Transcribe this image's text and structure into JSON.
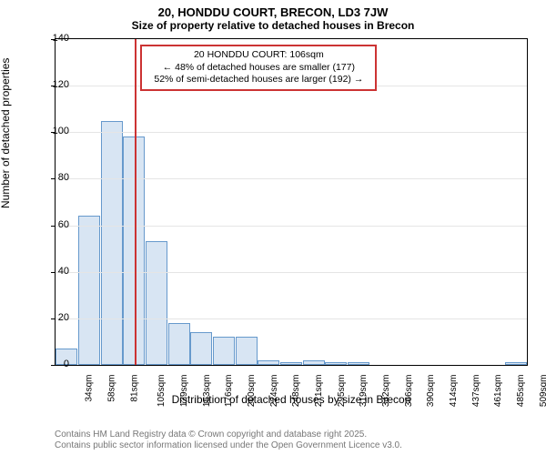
{
  "header": {
    "title": "20, HONDDU COURT, BRECON, LD3 7JW",
    "subtitle": "Size of property relative to detached houses in Brecon"
  },
  "chart": {
    "type": "histogram",
    "ylabel": "Number of detached properties",
    "xlabel": "Distribution of detached houses by size in Brecon",
    "ylim": [
      0,
      140
    ],
    "ytick_step": 20,
    "yticks": [
      0,
      20,
      40,
      60,
      80,
      100,
      120,
      140
    ],
    "grid_color": "#e5e5e5",
    "background_color": "#ffffff",
    "bar_fill": "#d8e5f3",
    "bar_border": "#6699cc",
    "marker_color": "#cc3333",
    "marker_value": 106,
    "x_min": 22,
    "x_max": 520,
    "x_tick_labels": [
      "34sqm",
      "58sqm",
      "81sqm",
      "105sqm",
      "129sqm",
      "153sqm",
      "176sqm",
      "200sqm",
      "224sqm",
      "248sqm",
      "271sqm",
      "295sqm",
      "319sqm",
      "342sqm",
      "366sqm",
      "390sqm",
      "414sqm",
      "437sqm",
      "461sqm",
      "485sqm",
      "509sqm"
    ],
    "bar_values": [
      7,
      64,
      105,
      98,
      53,
      18,
      14,
      12,
      12,
      2,
      1,
      2,
      1,
      1,
      0,
      0,
      0,
      0,
      0,
      0,
      1
    ],
    "annotation": {
      "line1": "20 HONDDU COURT: 106sqm",
      "line2": "← 48% of detached houses are smaller (177)",
      "line3": "52% of semi-detached houses are larger (192) →",
      "box_border": "#cc3333"
    }
  },
  "footer": {
    "line1": "Contains HM Land Registry data © Crown copyright and database right 2025.",
    "line2": "Contains public sector information licensed under the Open Government Licence v3.0."
  }
}
